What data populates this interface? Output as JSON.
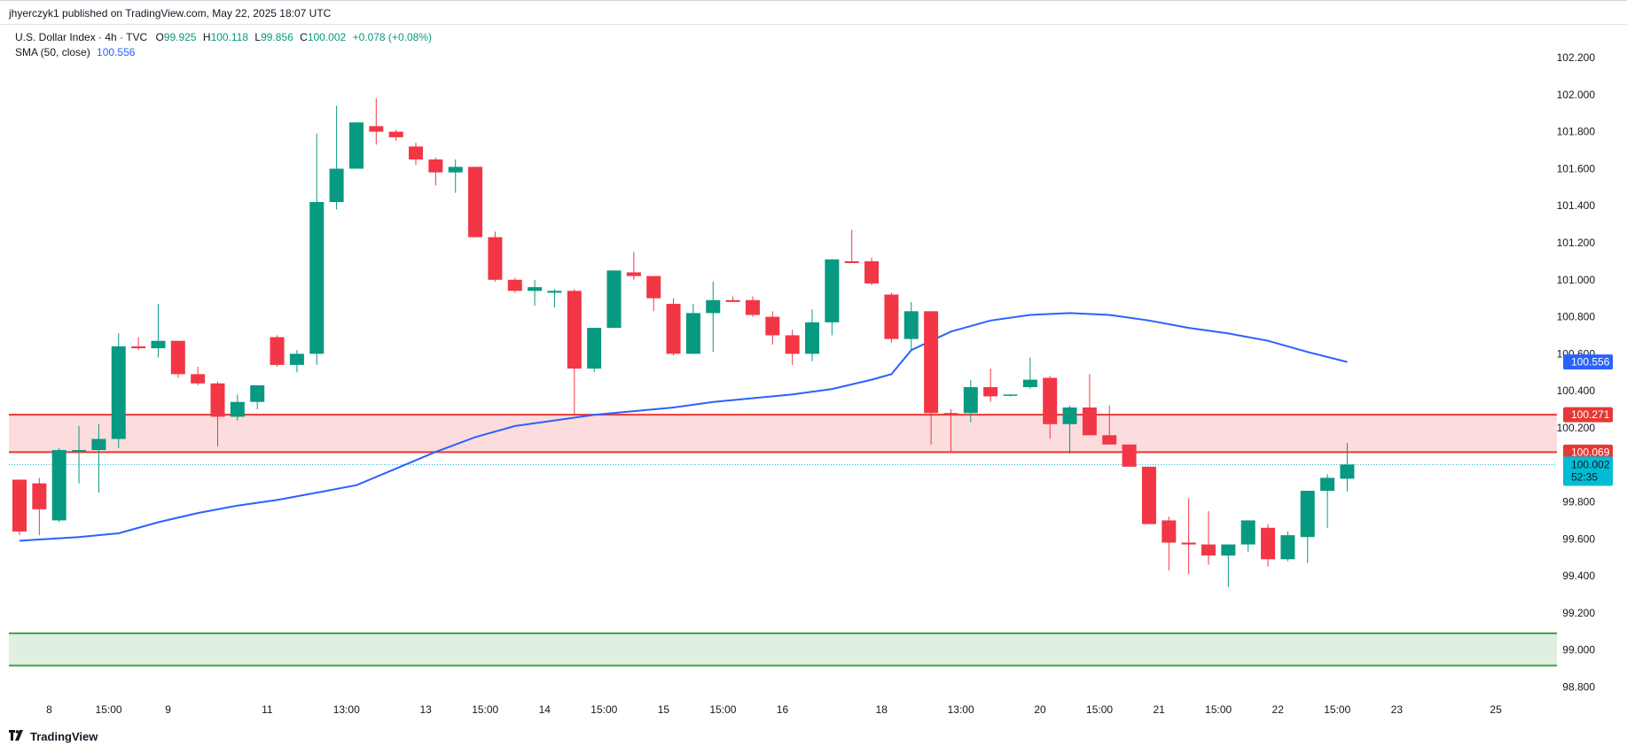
{
  "header": {
    "published": "jhyerczyk1 published on TradingView.com, May 22, 2025 18:07 UTC"
  },
  "legend": {
    "symbol": "U.S. Dollar Index · 4h · TVC",
    "o_label": "O",
    "o_value": "99.925",
    "h_label": "H",
    "h_value": "100.118",
    "l_label": "L",
    "l_value": "99.856",
    "c_label": "C",
    "c_value": "100.002",
    "change": "+0.078 (+0.08%)",
    "sma_label": "SMA (50, close)",
    "sma_value": "100.556"
  },
  "footer": {
    "brand": "TradingView"
  },
  "colors": {
    "up": "#089981",
    "down": "#f23645",
    "sma": "#2962ff",
    "resistance_fill": "#fcdcdd",
    "resistance_line": "#e53935",
    "support_fill": "#dff0e0",
    "support_line": "#43a047",
    "last_price": "#00bcd4"
  },
  "chart_data": {
    "type": "candlestick",
    "symbol": "U.S. Dollar Index",
    "interval": "4h",
    "y_axis": {
      "ticks": [
        "102.200",
        "102.000",
        "101.800",
        "101.600",
        "101.400",
        "101.200",
        "101.000",
        "100.800",
        "100.600",
        "100.400",
        "100.200",
        "99.800",
        "99.600",
        "99.400",
        "99.200",
        "99.000",
        "98.800"
      ],
      "range": [
        98.74,
        102.32
      ]
    },
    "x_axis": {
      "labels": [
        {
          "text": "8",
          "i": 1.5
        },
        {
          "text": "15:00",
          "i": 4.5
        },
        {
          "text": "9",
          "i": 7.5
        },
        {
          "text": "11",
          "i": 12.5
        },
        {
          "text": "13:00",
          "i": 16.5
        },
        {
          "text": "13",
          "i": 20.5
        },
        {
          "text": "15:00",
          "i": 23.5
        },
        {
          "text": "14",
          "i": 26.5
        },
        {
          "text": "15:00",
          "i": 29.5
        },
        {
          "text": "15",
          "i": 32.5
        },
        {
          "text": "15:00",
          "i": 35.5
        },
        {
          "text": "16",
          "i": 38.5
        },
        {
          "text": "18",
          "i": 43.5
        },
        {
          "text": "13:00",
          "i": 47.5
        },
        {
          "text": "20",
          "i": 51.5
        },
        {
          "text": "15:00",
          "i": 54.5
        },
        {
          "text": "21",
          "i": 57.5
        },
        {
          "text": "15:00",
          "i": 60.5
        },
        {
          "text": "22",
          "i": 63.5
        },
        {
          "text": "15:00",
          "i": 66.5
        },
        {
          "text": "23",
          "i": 69.5
        },
        {
          "text": "25",
          "i": 74.5
        }
      ]
    },
    "candles": [
      [
        99.92,
        99.92,
        99.62,
        99.64
      ],
      [
        99.9,
        99.93,
        99.62,
        99.76
      ],
      [
        99.7,
        100.09,
        99.69,
        100.08
      ],
      [
        100.08,
        100.21,
        99.9,
        100.08
      ],
      [
        100.08,
        100.22,
        99.85,
        100.14
      ],
      [
        100.14,
        100.71,
        100.09,
        100.64
      ],
      [
        100.64,
        100.69,
        100.62,
        100.63
      ],
      [
        100.63,
        100.87,
        100.58,
        100.67
      ],
      [
        100.67,
        100.67,
        100.47,
        100.49
      ],
      [
        100.49,
        100.53,
        100.43,
        100.44
      ],
      [
        100.44,
        100.45,
        100.1,
        100.26
      ],
      [
        100.26,
        100.38,
        100.24,
        100.34
      ],
      [
        100.34,
        100.43,
        100.3,
        100.43
      ],
      [
        100.69,
        100.7,
        100.53,
        100.54
      ],
      [
        100.54,
        100.62,
        100.5,
        100.6
      ],
      [
        100.6,
        101.79,
        100.54,
        101.42
      ],
      [
        101.42,
        101.94,
        101.38,
        101.6
      ],
      [
        101.6,
        101.85,
        101.6,
        101.85
      ],
      [
        101.83,
        101.98,
        101.73,
        101.8
      ],
      [
        101.8,
        101.81,
        101.75,
        101.77
      ],
      [
        101.72,
        101.74,
        101.62,
        101.65
      ],
      [
        101.65,
        101.66,
        101.51,
        101.58
      ],
      [
        101.58,
        101.65,
        101.47,
        101.61
      ],
      [
        101.61,
        101.61,
        101.23,
        101.23
      ],
      [
        101.23,
        101.26,
        100.99,
        101.0
      ],
      [
        101.0,
        101.01,
        100.93,
        100.94
      ],
      [
        100.94,
        101.0,
        100.86,
        100.96
      ],
      [
        100.93,
        100.95,
        100.85,
        100.94
      ],
      [
        100.94,
        100.95,
        100.27,
        100.52
      ],
      [
        100.52,
        100.74,
        100.5,
        100.74
      ],
      [
        100.74,
        101.05,
        100.74,
        101.05
      ],
      [
        101.04,
        101.15,
        101.0,
        101.02
      ],
      [
        101.02,
        101.01,
        100.83,
        100.9
      ],
      [
        100.87,
        100.9,
        100.59,
        100.6
      ],
      [
        100.6,
        100.87,
        100.6,
        100.82
      ],
      [
        100.82,
        100.99,
        100.61,
        100.89
      ],
      [
        100.89,
        100.91,
        100.88,
        100.88
      ],
      [
        100.89,
        100.91,
        100.8,
        100.81
      ],
      [
        100.8,
        100.83,
        100.65,
        100.7
      ],
      [
        100.7,
        100.73,
        100.54,
        100.6
      ],
      [
        100.6,
        100.84,
        100.56,
        100.77
      ],
      [
        100.77,
        101.11,
        100.7,
        101.11
      ],
      [
        101.1,
        101.27,
        101.1,
        101.09
      ],
      [
        101.1,
        101.12,
        100.97,
        100.98
      ],
      [
        100.92,
        100.93,
        100.66,
        100.68
      ],
      [
        100.68,
        100.88,
        100.62,
        100.83
      ],
      [
        100.83,
        100.82,
        100.11,
        100.28
      ],
      [
        100.28,
        100.3,
        100.07,
        100.27
      ],
      [
        100.28,
        100.46,
        100.23,
        100.42
      ],
      [
        100.42,
        100.52,
        100.34,
        100.37
      ],
      [
        100.38,
        100.38,
        100.37,
        100.38
      ],
      [
        100.42,
        100.58,
        100.41,
        100.46
      ],
      [
        100.47,
        100.48,
        100.14,
        100.22
      ],
      [
        100.22,
        100.32,
        100.06,
        100.31
      ],
      [
        100.31,
        100.49,
        100.16,
        100.16
      ],
      [
        100.16,
        100.32,
        100.11,
        100.11
      ],
      [
        100.11,
        100.09,
        99.99,
        99.99
      ],
      [
        99.99,
        99.98,
        99.68,
        99.68
      ],
      [
        99.7,
        99.72,
        99.43,
        99.58
      ],
      [
        99.58,
        99.82,
        99.41,
        99.57
      ],
      [
        99.57,
        99.75,
        99.46,
        99.51
      ],
      [
        99.51,
        99.57,
        99.34,
        99.57
      ],
      [
        99.57,
        99.7,
        99.53,
        99.7
      ],
      [
        99.66,
        99.68,
        99.45,
        99.49
      ],
      [
        99.49,
        99.64,
        99.48,
        99.62
      ],
      [
        99.61,
        99.86,
        99.47,
        99.86
      ],
      [
        99.86,
        99.95,
        99.66,
        99.93
      ],
      [
        99.925,
        100.118,
        99.856,
        100.002
      ]
    ],
    "sma": [
      [
        0,
        99.59
      ],
      [
        3,
        99.61
      ],
      [
        5,
        99.63
      ],
      [
        7,
        99.69
      ],
      [
        9,
        99.74
      ],
      [
        11,
        99.78
      ],
      [
        13,
        99.81
      ],
      [
        15,
        99.85
      ],
      [
        17,
        99.89
      ],
      [
        19,
        99.98
      ],
      [
        21,
        100.07
      ],
      [
        23,
        100.15
      ],
      [
        25,
        100.21
      ],
      [
        27,
        100.24
      ],
      [
        29,
        100.27
      ],
      [
        31,
        100.29
      ],
      [
        33,
        100.31
      ],
      [
        35,
        100.34
      ],
      [
        37,
        100.36
      ],
      [
        39,
        100.38
      ],
      [
        41,
        100.41
      ],
      [
        43,
        100.46
      ],
      [
        44,
        100.49
      ],
      [
        45,
        100.62
      ],
      [
        47,
        100.72
      ],
      [
        49,
        100.78
      ],
      [
        51,
        100.81
      ],
      [
        53,
        100.82
      ],
      [
        55,
        100.81
      ],
      [
        57,
        100.78
      ],
      [
        59,
        100.74
      ],
      [
        61,
        100.71
      ],
      [
        63,
        100.67
      ],
      [
        65,
        100.61
      ],
      [
        67,
        100.556
      ]
    ],
    "zones": [
      {
        "kind": "resistance",
        "top": 100.271,
        "bottom": 100.069
      },
      {
        "kind": "support",
        "top": 99.09,
        "bottom": 98.915
      }
    ],
    "price_labels": {
      "sma": "100.556",
      "zone_top": "100.271",
      "zone_bottom": "100.069",
      "last": "100.002",
      "countdown": "52:35"
    },
    "last_price": 100.002
  }
}
